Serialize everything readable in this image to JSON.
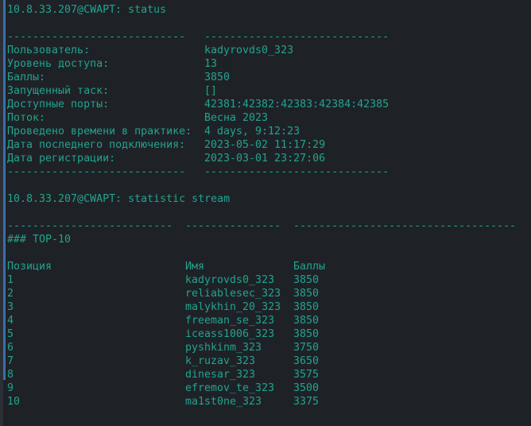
{
  "colors": {
    "background": "#1e2227",
    "text": "#22a38e",
    "gutter_bar": "#3b6ea5"
  },
  "status_cmd": {
    "prompt": "10.8.33.207@CWAPT: status"
  },
  "status": {
    "sep_left": "----------------------------",
    "sep_right": "-----------------------------",
    "rows": [
      {
        "label": "Пользователь:",
        "value": "kadyrovds0_323"
      },
      {
        "label": "Уровень доступа:",
        "value": "13"
      },
      {
        "label": "Баллы:",
        "value": "3850"
      },
      {
        "label": "Запущенный таск:",
        "value": "[]"
      },
      {
        "label": "Доступные порты:",
        "value": "42381:42382:42383:42384:42385"
      },
      {
        "label": "Поток:",
        "value": "Весна 2023"
      },
      {
        "label": "Проведено времени в практике:",
        "value": "4 days, 9:12:23"
      },
      {
        "label": "Дата последнего подключения:",
        "value": "2023-05-02 11:17:29"
      },
      {
        "label": "Дата регистрации:",
        "value": "2023-03-01 23:27:06"
      }
    ]
  },
  "stream_cmd": {
    "prompt": "10.8.33.207@CWAPT: statistic stream"
  },
  "stream": {
    "sep": [
      "--------------------------",
      "---------------",
      "-----------------------------------"
    ],
    "title": "### TOP-10",
    "headers": [
      "Позиция",
      "Имя",
      "Баллы"
    ],
    "rows": [
      [
        "1",
        "kadyrovds0_323",
        "3850"
      ],
      [
        "2",
        "reliablesec_323",
        "3850"
      ],
      [
        "3",
        "malykhin_20_323",
        "3850"
      ],
      [
        "4",
        "freeman_se_323",
        "3850"
      ],
      [
        "5",
        "iceass1006_323",
        "3850"
      ],
      [
        "6",
        "pyshkinm_323",
        "3750"
      ],
      [
        "7",
        "k_ruzav_323",
        "3650"
      ],
      [
        "8",
        "dinesar_323",
        "3575"
      ],
      [
        "9",
        "efremov_te_323",
        "3500"
      ],
      [
        "10",
        "ma1st0ne_323",
        "3375"
      ]
    ]
  }
}
